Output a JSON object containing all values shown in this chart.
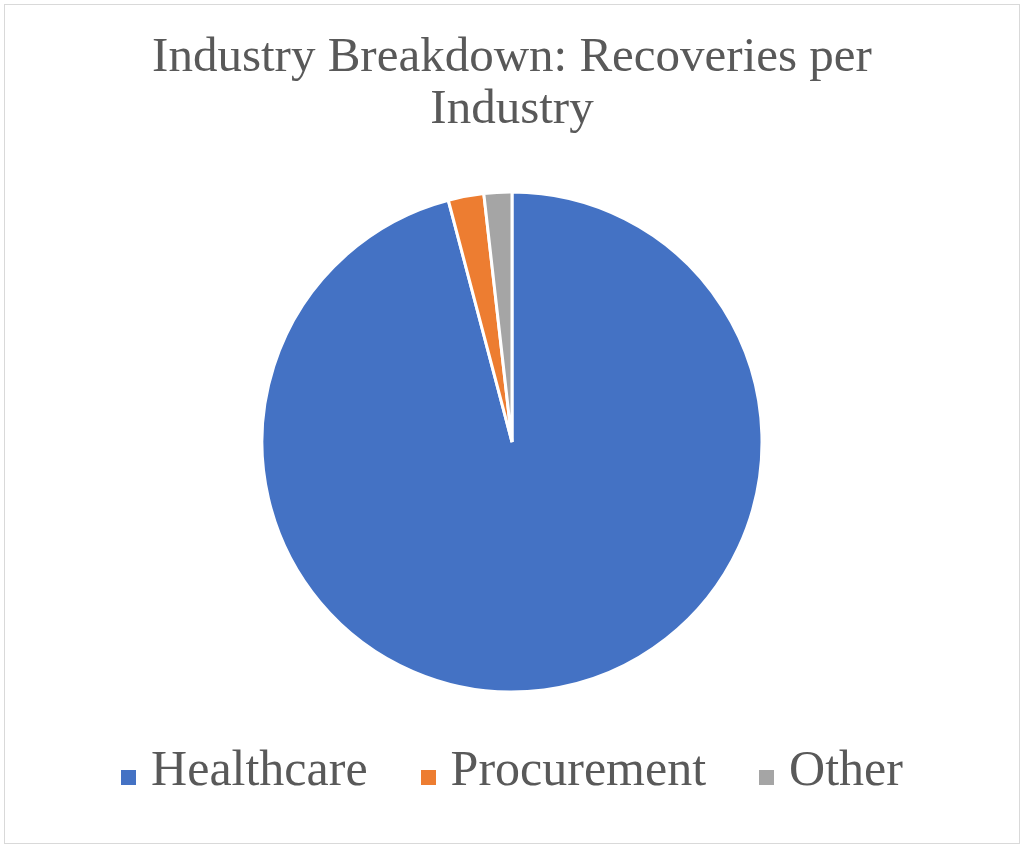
{
  "chart_data": {
    "type": "pie",
    "title": "Industry Breakdown: Recoveries per Industry",
    "categories": [
      "Healthcare",
      "Procurement",
      "Other"
    ],
    "values": [
      95.9,
      2.3,
      1.8
    ],
    "colors": [
      "#4472c4",
      "#ed7d31",
      "#a5a5a5"
    ],
    "legend": "bottom"
  }
}
